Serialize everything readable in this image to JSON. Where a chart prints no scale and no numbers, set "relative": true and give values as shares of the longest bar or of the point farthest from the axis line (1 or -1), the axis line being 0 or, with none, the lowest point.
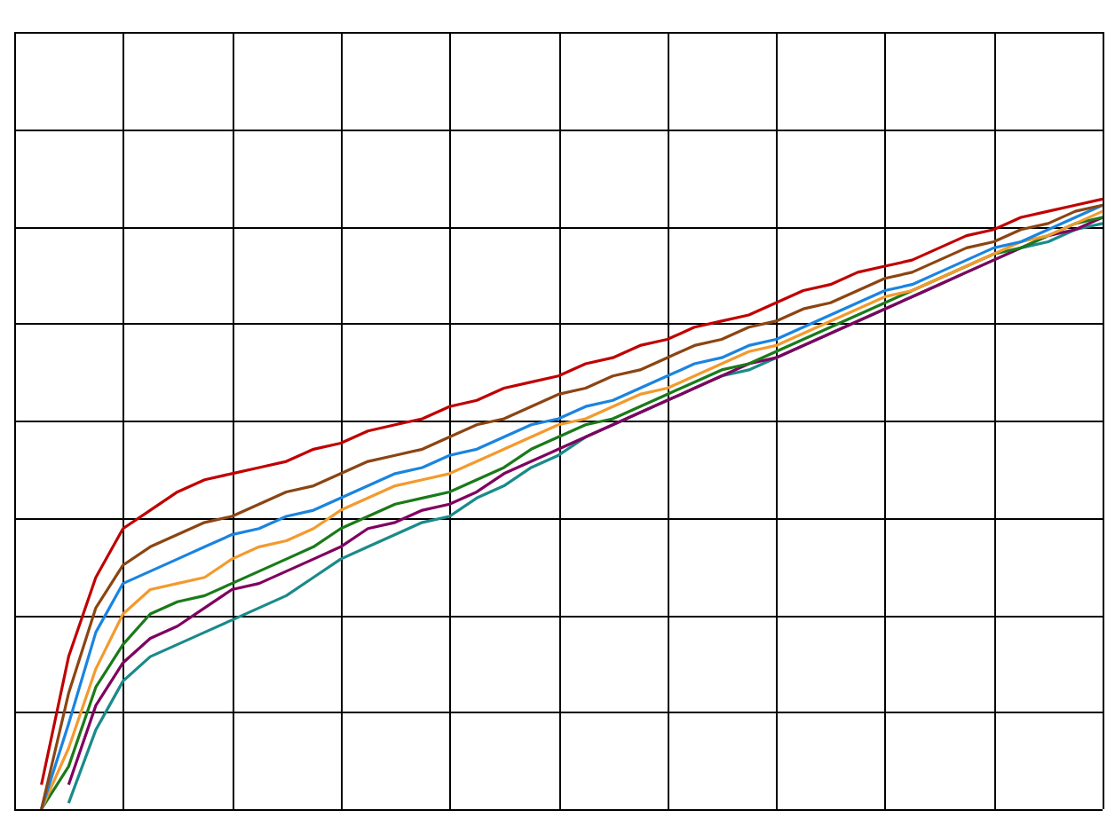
{
  "chart_data": {
    "type": "line",
    "relative": true,
    "grid": true,
    "categories": [
      null,
      null,
      null,
      null,
      null,
      null,
      null,
      null,
      null,
      null,
      null,
      null,
      null,
      null,
      null,
      null,
      null,
      null,
      null,
      null,
      null,
      null,
      null,
      null,
      null,
      null,
      null,
      null,
      null,
      null,
      null,
      null,
      null,
      null,
      null,
      null,
      null,
      null,
      null,
      null,
      null
    ],
    "series": [
      {
        "color": "#c00000",
        "values": [
          null,
          0.04,
          0.25,
          0.38,
          0.46,
          0.49,
          0.52,
          0.54,
          0.55,
          0.56,
          0.57,
          0.59,
          0.6,
          0.62,
          0.63,
          0.64,
          0.66,
          0.67,
          0.69,
          0.7,
          0.71,
          0.73,
          0.74,
          0.76,
          0.77,
          0.79,
          0.8,
          0.81,
          0.83,
          0.85,
          0.86,
          0.88,
          0.89,
          0.9,
          0.92,
          0.94,
          0.95,
          0.97,
          0.98,
          0.99,
          1
        ]
      },
      {
        "color": "#8b4513",
        "values": [
          null,
          0,
          0.19,
          0.33,
          0.4,
          0.43,
          0.45,
          0.47,
          0.48,
          0.5,
          0.52,
          0.53,
          0.55,
          0.57,
          0.58,
          0.59,
          0.61,
          0.63,
          0.64,
          0.66,
          0.68,
          0.69,
          0.71,
          0.72,
          0.74,
          0.76,
          0.77,
          0.79,
          0.8,
          0.82,
          0.83,
          0.85,
          0.87,
          0.88,
          0.9,
          0.92,
          0.93,
          0.95,
          0.96,
          0.98,
          0.99
        ]
      },
      {
        "color": "#1a84e0",
        "values": [
          null,
          0,
          0.14,
          0.29,
          0.37,
          0.39,
          0.41,
          0.43,
          0.45,
          0.46,
          0.48,
          0.49,
          0.51,
          0.53,
          0.55,
          0.56,
          0.58,
          0.59,
          0.61,
          0.63,
          0.64,
          0.66,
          0.67,
          0.69,
          0.71,
          0.73,
          0.74,
          0.76,
          0.77,
          0.79,
          0.81,
          0.83,
          0.85,
          0.86,
          0.88,
          0.9,
          0.92,
          0.93,
          0.95,
          0.97,
          0.99
        ]
      },
      {
        "color": "#f39a2e",
        "values": [
          null,
          0,
          0.1,
          0.23,
          0.32,
          0.36,
          0.37,
          0.38,
          0.41,
          0.43,
          0.44,
          0.46,
          0.49,
          0.51,
          0.53,
          0.54,
          0.55,
          0.57,
          0.59,
          0.61,
          0.63,
          0.64,
          0.66,
          0.68,
          0.69,
          0.71,
          0.73,
          0.75,
          0.76,
          0.78,
          0.8,
          0.82,
          0.84,
          0.85,
          0.87,
          0.89,
          0.91,
          0.93,
          0.94,
          0.96,
          0.98
        ]
      },
      {
        "color": "#1a7a1a",
        "values": [
          null,
          0,
          0.07,
          0.2,
          0.27,
          0.32,
          0.34,
          0.35,
          0.37,
          0.39,
          0.41,
          0.43,
          0.46,
          0.48,
          0.5,
          0.51,
          0.52,
          0.54,
          0.56,
          0.59,
          0.61,
          0.63,
          0.64,
          0.66,
          0.68,
          0.7,
          0.72,
          0.73,
          0.75,
          0.77,
          0.79,
          0.81,
          0.83,
          0.85,
          0.87,
          0.89,
          0.91,
          0.92,
          0.94,
          0.96,
          0.97
        ]
      },
      {
        "color": "#800060",
        "values": [
          null,
          null,
          0.04,
          0.17,
          0.24,
          0.28,
          0.3,
          0.33,
          0.36,
          0.37,
          0.39,
          0.41,
          0.43,
          0.46,
          0.47,
          0.49,
          0.5,
          0.52,
          0.55,
          0.57,
          0.59,
          0.61,
          0.63,
          0.65,
          0.67,
          0.69,
          0.71,
          0.73,
          0.74,
          0.76,
          0.78,
          0.8,
          0.82,
          0.84,
          0.86,
          0.88,
          0.9,
          0.92,
          0.94,
          0.95,
          0.97
        ]
      },
      {
        "color": "#1a8a8a",
        "values": [
          null,
          null,
          0.01,
          0.13,
          0.21,
          0.25,
          0.27,
          0.29,
          0.31,
          0.33,
          0.35,
          0.38,
          0.41,
          0.43,
          0.45,
          0.47,
          0.48,
          0.51,
          0.53,
          0.56,
          0.58,
          0.61,
          0.63,
          0.65,
          0.67,
          0.69,
          0.71,
          0.72,
          0.74,
          0.76,
          0.78,
          0.8,
          0.82,
          0.84,
          0.86,
          0.88,
          0.9,
          0.92,
          0.93,
          0.95,
          0.96
        ]
      }
    ]
  }
}
